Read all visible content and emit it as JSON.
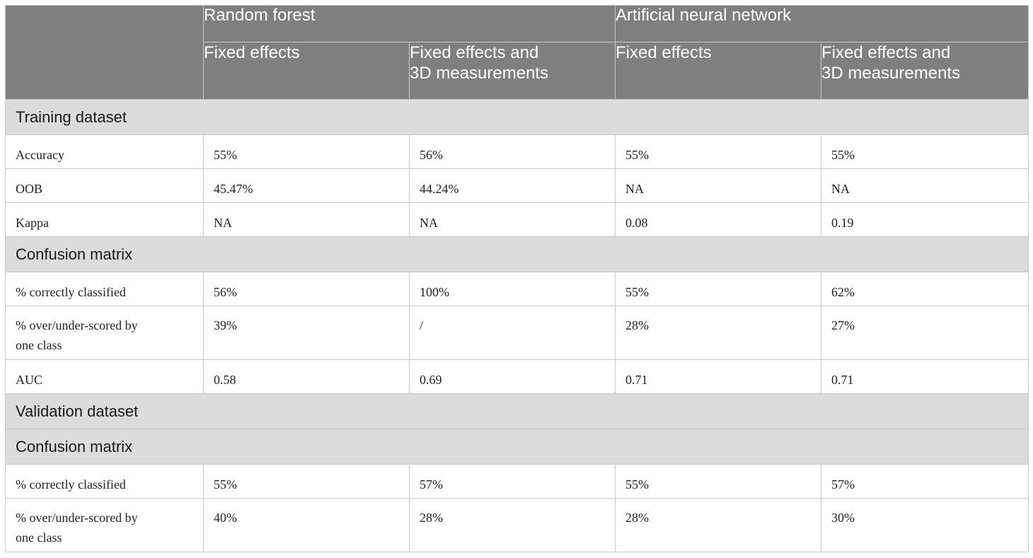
{
  "header": {
    "corner": "",
    "groups": [
      "Random forest",
      "Artificial neural network"
    ],
    "subcolumns": [
      "Fixed effects",
      "Fixed effects and\n3D measurements",
      "Fixed effects",
      "Fixed effects and\n3D measurements"
    ]
  },
  "sections": [
    {
      "title": "Training dataset",
      "rows": [
        {
          "label": "Accuracy",
          "values": [
            "55%",
            "56%",
            "55%",
            "55%"
          ]
        },
        {
          "label": "OOB",
          "values": [
            "45.47%",
            "44.24%",
            "NA",
            "NA"
          ]
        },
        {
          "label": "Kappa",
          "values": [
            "NA",
            "NA",
            "0.08",
            "0.19"
          ]
        }
      ]
    },
    {
      "title": "Confusion matrix",
      "rows": [
        {
          "label": "% correctly classified",
          "values": [
            "56%",
            "100%",
            "55%",
            "62%"
          ]
        },
        {
          "label": "% over/under-scored by\none class",
          "values": [
            "39%",
            "/",
            "28%",
            "27%"
          ]
        },
        {
          "label": "AUC",
          "values": [
            "0.58",
            "0.69",
            "0.71",
            "0.71"
          ]
        }
      ]
    },
    {
      "title": "Validation dataset",
      "rows": []
    },
    {
      "title": "Confusion matrix",
      "rows": [
        {
          "label": "% correctly classified",
          "values": [
            "55%",
            "57%",
            "55%",
            "57%"
          ]
        },
        {
          "label": "% over/under-scored by\none class",
          "values": [
            "40%",
            "28%",
            "28%",
            "30%"
          ]
        }
      ]
    }
  ]
}
